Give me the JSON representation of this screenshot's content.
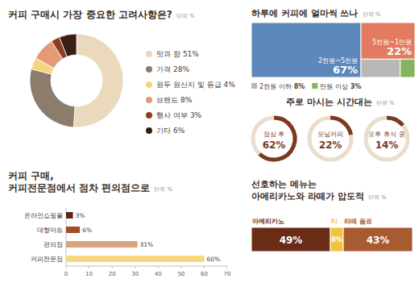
{
  "chart_data": [
    {
      "type": "pie",
      "title": "커피 구매시 가장 중요한 고려사항은?",
      "subtitle": "단위 %",
      "categories": [
        "맛과 향",
        "가격",
        "원두 원산지 및 등급",
        "브랜드",
        "행사 여부",
        "기타"
      ],
      "values": [
        51,
        28,
        4,
        8,
        3,
        6
      ],
      "value_labels": [
        "51%",
        "28%",
        "4%",
        "8%",
        "3%",
        "6%"
      ],
      "colors": [
        "#ead9bd",
        "#8c7c6c",
        "#f7d27f",
        "#e49a78",
        "#8e3b21",
        "#3a1d14"
      ],
      "legend": "right"
    },
    {
      "type": "treemap",
      "title": "하루에 커피에 얼마씩 쓰나",
      "subtitle": "단위 %",
      "categories": [
        "2천원~5천원",
        "5천원~1만원",
        "2천원 이하",
        "만원 이상"
      ],
      "values": [
        67,
        22,
        8,
        3
      ],
      "value_labels": [
        "67%",
        "22%",
        "8%",
        "3%"
      ],
      "colors": [
        "#5d88bb",
        "#e27b5f",
        "#b8b8b6",
        "#84b55e"
      ]
    },
    {
      "type": "radial",
      "title": "주로 마시는 시간대는",
      "subtitle": "단위 %",
      "categories": [
        "점심 후",
        "모닝커피",
        "오후 휴식 중"
      ],
      "values": [
        62,
        22,
        14
      ],
      "value_labels": [
        "62%",
        "22%",
        "14%"
      ],
      "color": "#7b3a20",
      "ylim": [
        0,
        100
      ]
    },
    {
      "type": "bar",
      "orientation": "horizontal",
      "title": "커피 구매,\n커피전문점에서 점차 편의점으로",
      "subtitle": "단위 %",
      "categories": [
        "온라인쇼핑몰",
        "대형마트",
        "편의점",
        "커피전문점"
      ],
      "values": [
        3,
        6,
        31,
        60
      ],
      "value_labels": [
        "3%",
        "6%",
        "31%",
        "60%"
      ],
      "colors": [
        "#5b2616",
        "#a04d2a",
        "#dba27e",
        "#f5d77f"
      ],
      "xlim": [
        0,
        70
      ],
      "xticks": [
        0,
        10,
        20,
        30,
        40,
        50,
        60,
        70
      ],
      "data_labels": true,
      "grid": false
    },
    {
      "type": "stacked_bar",
      "orientation": "horizontal",
      "stacked": true,
      "title": "선호하는 메뉴는\n아메리카노와 라떼가 압도적",
      "subtitle": "단위 %",
      "categories": [
        "아메리카노",
        "티",
        "라떼 음료"
      ],
      "values": [
        49,
        8,
        43
      ],
      "value_labels": [
        "49%",
        "8%",
        "43%"
      ],
      "colors": [
        "#6a2c17",
        "#f0c23d",
        "#a85b30"
      ],
      "data_labels": true
    }
  ]
}
